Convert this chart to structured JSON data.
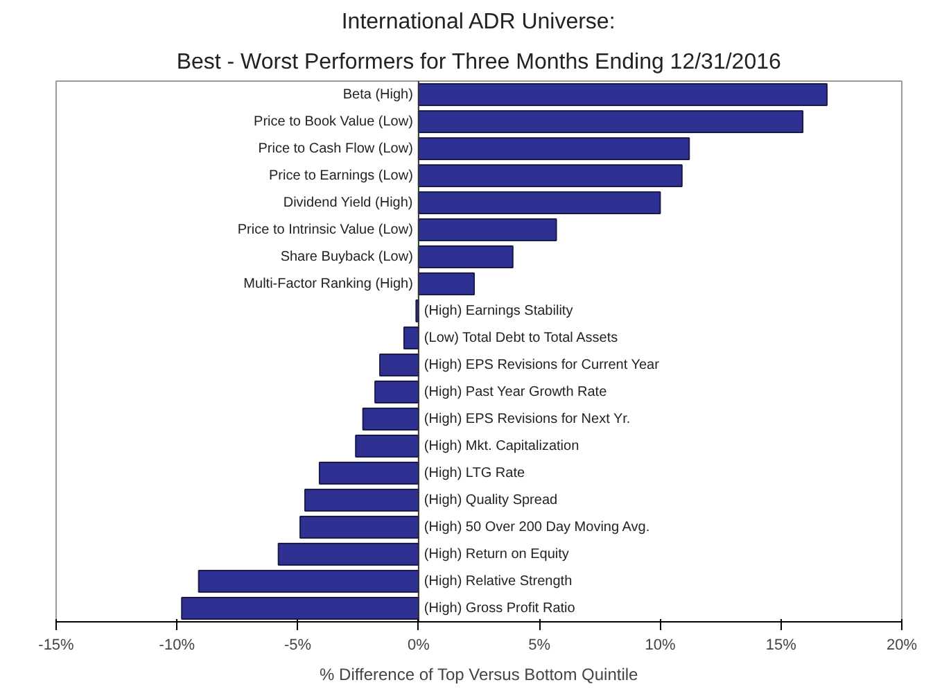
{
  "chart_data": {
    "type": "bar",
    "orientation": "horizontal",
    "title": "International ADR Universe:",
    "subtitle": "Best - Worst Performers for Three Months Ending 12/31/2016",
    "xlabel": "% Difference of Top Versus Bottom Quintile",
    "categories": [
      "Beta (High)",
      "Price to Book Value (Low)",
      "Price to Cash Flow (Low)",
      "Price to Earnings (Low)",
      "Dividend Yield (High)",
      "Price to Intrinsic Value (Low)",
      "Share Buyback (Low)",
      "Multi-Factor Ranking (High)",
      "(High) Earnings Stability",
      "(Low) Total Debt to Total Assets",
      "(High) EPS Revisions for Current Year",
      "(High) Past Year Growth Rate",
      "(High) EPS Revisions for Next Yr.",
      "(High) Mkt. Capitalization",
      "(High) LTG Rate",
      "(High) Quality Spread",
      "(High) 50 Over 200 Day Moving Avg.",
      "(High) Return on Equity",
      "(High) Relative Strength",
      "(High) Gross Profit Ratio"
    ],
    "values": [
      16.9,
      15.9,
      11.2,
      10.9,
      10.0,
      5.7,
      3.9,
      2.3,
      -0.1,
      -0.6,
      -1.6,
      -1.8,
      -2.3,
      -2.6,
      -4.1,
      -4.7,
      -4.9,
      -5.8,
      -9.1,
      -9.8
    ],
    "color": "#2e3192",
    "xlim": [
      -15,
      20
    ],
    "xticks": [
      {
        "value": -15,
        "label": "-15%"
      },
      {
        "value": -10,
        "label": "-10%"
      },
      {
        "value": -5,
        "label": "-5%"
      },
      {
        "value": 0,
        "label": "0%"
      },
      {
        "value": 5,
        "label": "5%"
      },
      {
        "value": 10,
        "label": "10%"
      },
      {
        "value": 15,
        "label": "15%"
      },
      {
        "value": 20,
        "label": "20%"
      }
    ],
    "grid": false
  }
}
